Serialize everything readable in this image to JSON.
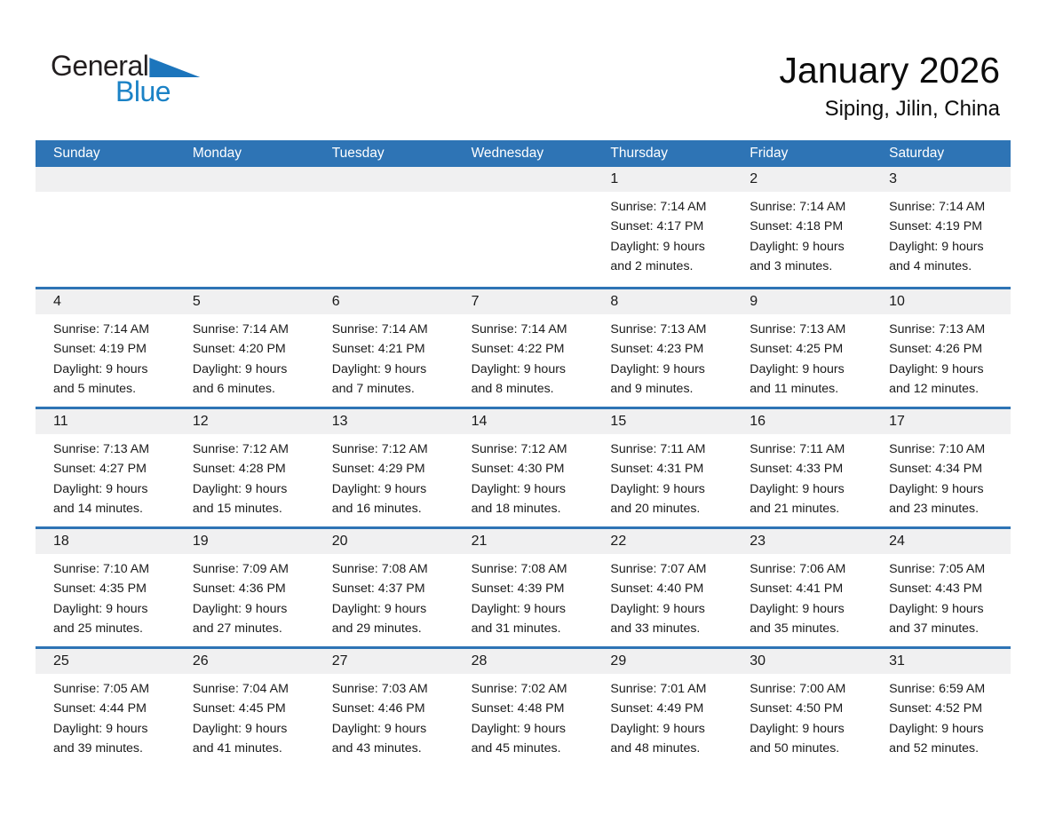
{
  "logo": {
    "part1": "General",
    "part2": "Blue"
  },
  "header": {
    "title": "January 2026",
    "location": "Siping, Jilin, China"
  },
  "colors": {
    "header_blue": "#2E74B5",
    "band_gray": "#F0F0F1",
    "logo_blue": "#1B82C6",
    "triangle_blue": "#1C75BC"
  },
  "weekdays": [
    "Sunday",
    "Monday",
    "Tuesday",
    "Wednesday",
    "Thursday",
    "Friday",
    "Saturday"
  ],
  "weeks": [
    [
      {
        "num": ""
      },
      {
        "num": ""
      },
      {
        "num": ""
      },
      {
        "num": ""
      },
      {
        "num": "1",
        "lines": [
          "Sunrise: 7:14 AM",
          "Sunset: 4:17 PM",
          "Daylight: 9 hours",
          "and 2 minutes."
        ]
      },
      {
        "num": "2",
        "lines": [
          "Sunrise: 7:14 AM",
          "Sunset: 4:18 PM",
          "Daylight: 9 hours",
          "and 3 minutes."
        ]
      },
      {
        "num": "3",
        "lines": [
          "Sunrise: 7:14 AM",
          "Sunset: 4:19 PM",
          "Daylight: 9 hours",
          "and 4 minutes."
        ]
      }
    ],
    [
      {
        "num": "4",
        "lines": [
          "Sunrise: 7:14 AM",
          "Sunset: 4:19 PM",
          "Daylight: 9 hours",
          "and 5 minutes."
        ]
      },
      {
        "num": "5",
        "lines": [
          "Sunrise: 7:14 AM",
          "Sunset: 4:20 PM",
          "Daylight: 9 hours",
          "and 6 minutes."
        ]
      },
      {
        "num": "6",
        "lines": [
          "Sunrise: 7:14 AM",
          "Sunset: 4:21 PM",
          "Daylight: 9 hours",
          "and 7 minutes."
        ]
      },
      {
        "num": "7",
        "lines": [
          "Sunrise: 7:14 AM",
          "Sunset: 4:22 PM",
          "Daylight: 9 hours",
          "and 8 minutes."
        ]
      },
      {
        "num": "8",
        "lines": [
          "Sunrise: 7:13 AM",
          "Sunset: 4:23 PM",
          "Daylight: 9 hours",
          "and 9 minutes."
        ]
      },
      {
        "num": "9",
        "lines": [
          "Sunrise: 7:13 AM",
          "Sunset: 4:25 PM",
          "Daylight: 9 hours",
          "and 11 minutes."
        ]
      },
      {
        "num": "10",
        "lines": [
          "Sunrise: 7:13 AM",
          "Sunset: 4:26 PM",
          "Daylight: 9 hours",
          "and 12 minutes."
        ]
      }
    ],
    [
      {
        "num": "11",
        "lines": [
          "Sunrise: 7:13 AM",
          "Sunset: 4:27 PM",
          "Daylight: 9 hours",
          "and 14 minutes."
        ]
      },
      {
        "num": "12",
        "lines": [
          "Sunrise: 7:12 AM",
          "Sunset: 4:28 PM",
          "Daylight: 9 hours",
          "and 15 minutes."
        ]
      },
      {
        "num": "13",
        "lines": [
          "Sunrise: 7:12 AM",
          "Sunset: 4:29 PM",
          "Daylight: 9 hours",
          "and 16 minutes."
        ]
      },
      {
        "num": "14",
        "lines": [
          "Sunrise: 7:12 AM",
          "Sunset: 4:30 PM",
          "Daylight: 9 hours",
          "and 18 minutes."
        ]
      },
      {
        "num": "15",
        "lines": [
          "Sunrise: 7:11 AM",
          "Sunset: 4:31 PM",
          "Daylight: 9 hours",
          "and 20 minutes."
        ]
      },
      {
        "num": "16",
        "lines": [
          "Sunrise: 7:11 AM",
          "Sunset: 4:33 PM",
          "Daylight: 9 hours",
          "and 21 minutes."
        ]
      },
      {
        "num": "17",
        "lines": [
          "Sunrise: 7:10 AM",
          "Sunset: 4:34 PM",
          "Daylight: 9 hours",
          "and 23 minutes."
        ]
      }
    ],
    [
      {
        "num": "18",
        "lines": [
          "Sunrise: 7:10 AM",
          "Sunset: 4:35 PM",
          "Daylight: 9 hours",
          "and 25 minutes."
        ]
      },
      {
        "num": "19",
        "lines": [
          "Sunrise: 7:09 AM",
          "Sunset: 4:36 PM",
          "Daylight: 9 hours",
          "and 27 minutes."
        ]
      },
      {
        "num": "20",
        "lines": [
          "Sunrise: 7:08 AM",
          "Sunset: 4:37 PM",
          "Daylight: 9 hours",
          "and 29 minutes."
        ]
      },
      {
        "num": "21",
        "lines": [
          "Sunrise: 7:08 AM",
          "Sunset: 4:39 PM",
          "Daylight: 9 hours",
          "and 31 minutes."
        ]
      },
      {
        "num": "22",
        "lines": [
          "Sunrise: 7:07 AM",
          "Sunset: 4:40 PM",
          "Daylight: 9 hours",
          "and 33 minutes."
        ]
      },
      {
        "num": "23",
        "lines": [
          "Sunrise: 7:06 AM",
          "Sunset: 4:41 PM",
          "Daylight: 9 hours",
          "and 35 minutes."
        ]
      },
      {
        "num": "24",
        "lines": [
          "Sunrise: 7:05 AM",
          "Sunset: 4:43 PM",
          "Daylight: 9 hours",
          "and 37 minutes."
        ]
      }
    ],
    [
      {
        "num": "25",
        "lines": [
          "Sunrise: 7:05 AM",
          "Sunset: 4:44 PM",
          "Daylight: 9 hours",
          "and 39 minutes."
        ]
      },
      {
        "num": "26",
        "lines": [
          "Sunrise: 7:04 AM",
          "Sunset: 4:45 PM",
          "Daylight: 9 hours",
          "and 41 minutes."
        ]
      },
      {
        "num": "27",
        "lines": [
          "Sunrise: 7:03 AM",
          "Sunset: 4:46 PM",
          "Daylight: 9 hours",
          "and 43 minutes."
        ]
      },
      {
        "num": "28",
        "lines": [
          "Sunrise: 7:02 AM",
          "Sunset: 4:48 PM",
          "Daylight: 9 hours",
          "and 45 minutes."
        ]
      },
      {
        "num": "29",
        "lines": [
          "Sunrise: 7:01 AM",
          "Sunset: 4:49 PM",
          "Daylight: 9 hours",
          "and 48 minutes."
        ]
      },
      {
        "num": "30",
        "lines": [
          "Sunrise: 7:00 AM",
          "Sunset: 4:50 PM",
          "Daylight: 9 hours",
          "and 50 minutes."
        ]
      },
      {
        "num": "31",
        "lines": [
          "Sunrise: 6:59 AM",
          "Sunset: 4:52 PM",
          "Daylight: 9 hours",
          "and 52 minutes."
        ]
      }
    ]
  ]
}
